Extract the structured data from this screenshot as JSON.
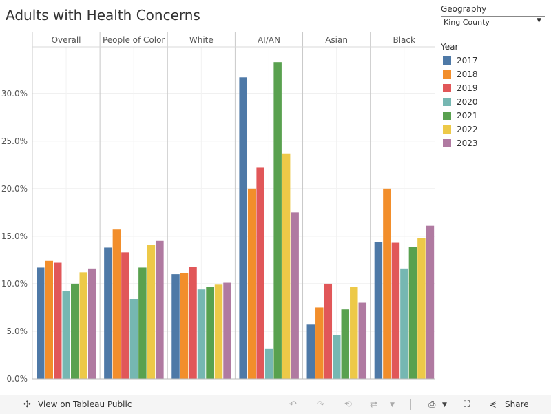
{
  "title": "Adults with Health Concerns",
  "filters": {
    "geography_label": "Geography",
    "geography_value": "King County"
  },
  "legend": {
    "title": "Year",
    "items": [
      {
        "label": "2017",
        "color": "#4e79a7"
      },
      {
        "label": "2018",
        "color": "#f28e2b"
      },
      {
        "label": "2019",
        "color": "#e15759"
      },
      {
        "label": "2020",
        "color": "#76b7b2"
      },
      {
        "label": "2021",
        "color": "#59a14f"
      },
      {
        "label": "2022",
        "color": "#edc948"
      },
      {
        "label": "2023",
        "color": "#b07aa1"
      }
    ]
  },
  "toolbar": {
    "view_label": "View on Tableau Public",
    "share_label": "Share"
  },
  "chart_data": {
    "type": "bar",
    "title": "Adults with Health Concerns",
    "xlabel": "",
    "ylabel": "",
    "ylim": [
      0,
      0.365
    ],
    "yticks": [
      0,
      0.05,
      0.1,
      0.15,
      0.2,
      0.25,
      0.3
    ],
    "ytick_labels": [
      "0.0%",
      "5.0%",
      "10.0%",
      "15.0%",
      "20.0%",
      "25.0%",
      "30.0%"
    ],
    "categories": [
      "Overall",
      "People of Color",
      "White",
      "AI/AN",
      "Asian",
      "Black"
    ],
    "series": [
      {
        "name": "2017",
        "values": [
          0.117,
          0.138,
          0.11,
          0.317,
          0.057,
          0.144
        ]
      },
      {
        "name": "2018",
        "values": [
          0.124,
          0.157,
          0.111,
          0.2,
          0.075,
          0.2
        ]
      },
      {
        "name": "2019",
        "values": [
          0.122,
          0.133,
          0.118,
          0.222,
          0.1,
          0.143
        ]
      },
      {
        "name": "2020",
        "values": [
          0.092,
          0.084,
          0.094,
          0.032,
          0.046,
          0.116
        ]
      },
      {
        "name": "2021",
        "values": [
          0.1,
          0.117,
          0.097,
          0.333,
          0.073,
          0.139
        ]
      },
      {
        "name": "2022",
        "values": [
          0.112,
          0.141,
          0.099,
          0.237,
          0.097,
          0.148
        ]
      },
      {
        "name": "2023",
        "values": [
          0.116,
          0.145,
          0.101,
          0.175,
          0.08,
          0.161
        ]
      }
    ]
  }
}
